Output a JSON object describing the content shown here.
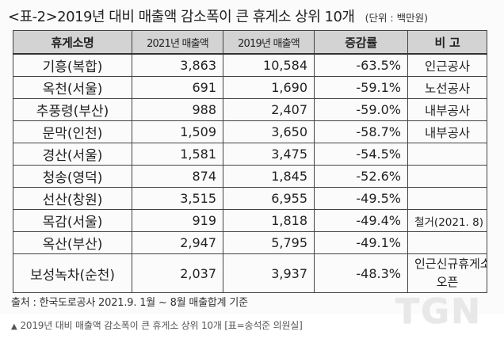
{
  "document": {
    "title": "<표-2>2019년 대비 매출액 감소폭이 큰 휴게소 상위 10개",
    "unit": "(단위 : 백만원)",
    "source": "출처 : 한국도로공사 2021.9. 1월 ~ 8월 매출합계 기준",
    "caption": "2019년 대비 매출액 감소폭이 큰 휴게소 상위 10개 [표=송석준 의원실]",
    "caption_marker": "▲",
    "watermark": "TGN"
  },
  "table": {
    "headers": {
      "name": "휴게소명",
      "y2021": "2021년 매출액",
      "y2019": "2019년 매출액",
      "rate": "증감률",
      "note": "비  고"
    },
    "rows": [
      {
        "name": "기흥(복합)",
        "y2021": "3,863",
        "y2019": "10,584",
        "rate": "-63.5%",
        "note": "인근공사"
      },
      {
        "name": "옥천(서울)",
        "y2021": "691",
        "y2019": "1,690",
        "rate": "-59.1%",
        "note": "노선공사"
      },
      {
        "name": "추풍령(부산)",
        "y2021": "988",
        "y2019": "2,407",
        "rate": "-59.0%",
        "note": "내부공사"
      },
      {
        "name": "문막(인천)",
        "y2021": "1,509",
        "y2019": "3,650",
        "rate": "-58.7%",
        "note": "내부공사"
      },
      {
        "name": "경산(서울)",
        "y2021": "1,581",
        "y2019": "3,475",
        "rate": "-54.5%",
        "note": ""
      },
      {
        "name": "청송(영덕)",
        "y2021": "874",
        "y2019": "1,845",
        "rate": "-52.6%",
        "note": ""
      },
      {
        "name": "선산(창원)",
        "y2021": "3,515",
        "y2019": "6,955",
        "rate": "-49.5%",
        "note": ""
      },
      {
        "name": "목감(서울)",
        "y2021": "919",
        "y2019": "1,818",
        "rate": "-49.4%",
        "note": "철거(2021. 8)"
      },
      {
        "name": "옥산(부산)",
        "y2021": "2,947",
        "y2019": "5,795",
        "rate": "-49.1%",
        "note": ""
      },
      {
        "name": "보성녹차(순천)",
        "y2021": "2,037",
        "y2019": "3,937",
        "rate": "-48.3%",
        "note_line1": "인근신규휴게소",
        "note_line2": "오픈"
      }
    ]
  }
}
